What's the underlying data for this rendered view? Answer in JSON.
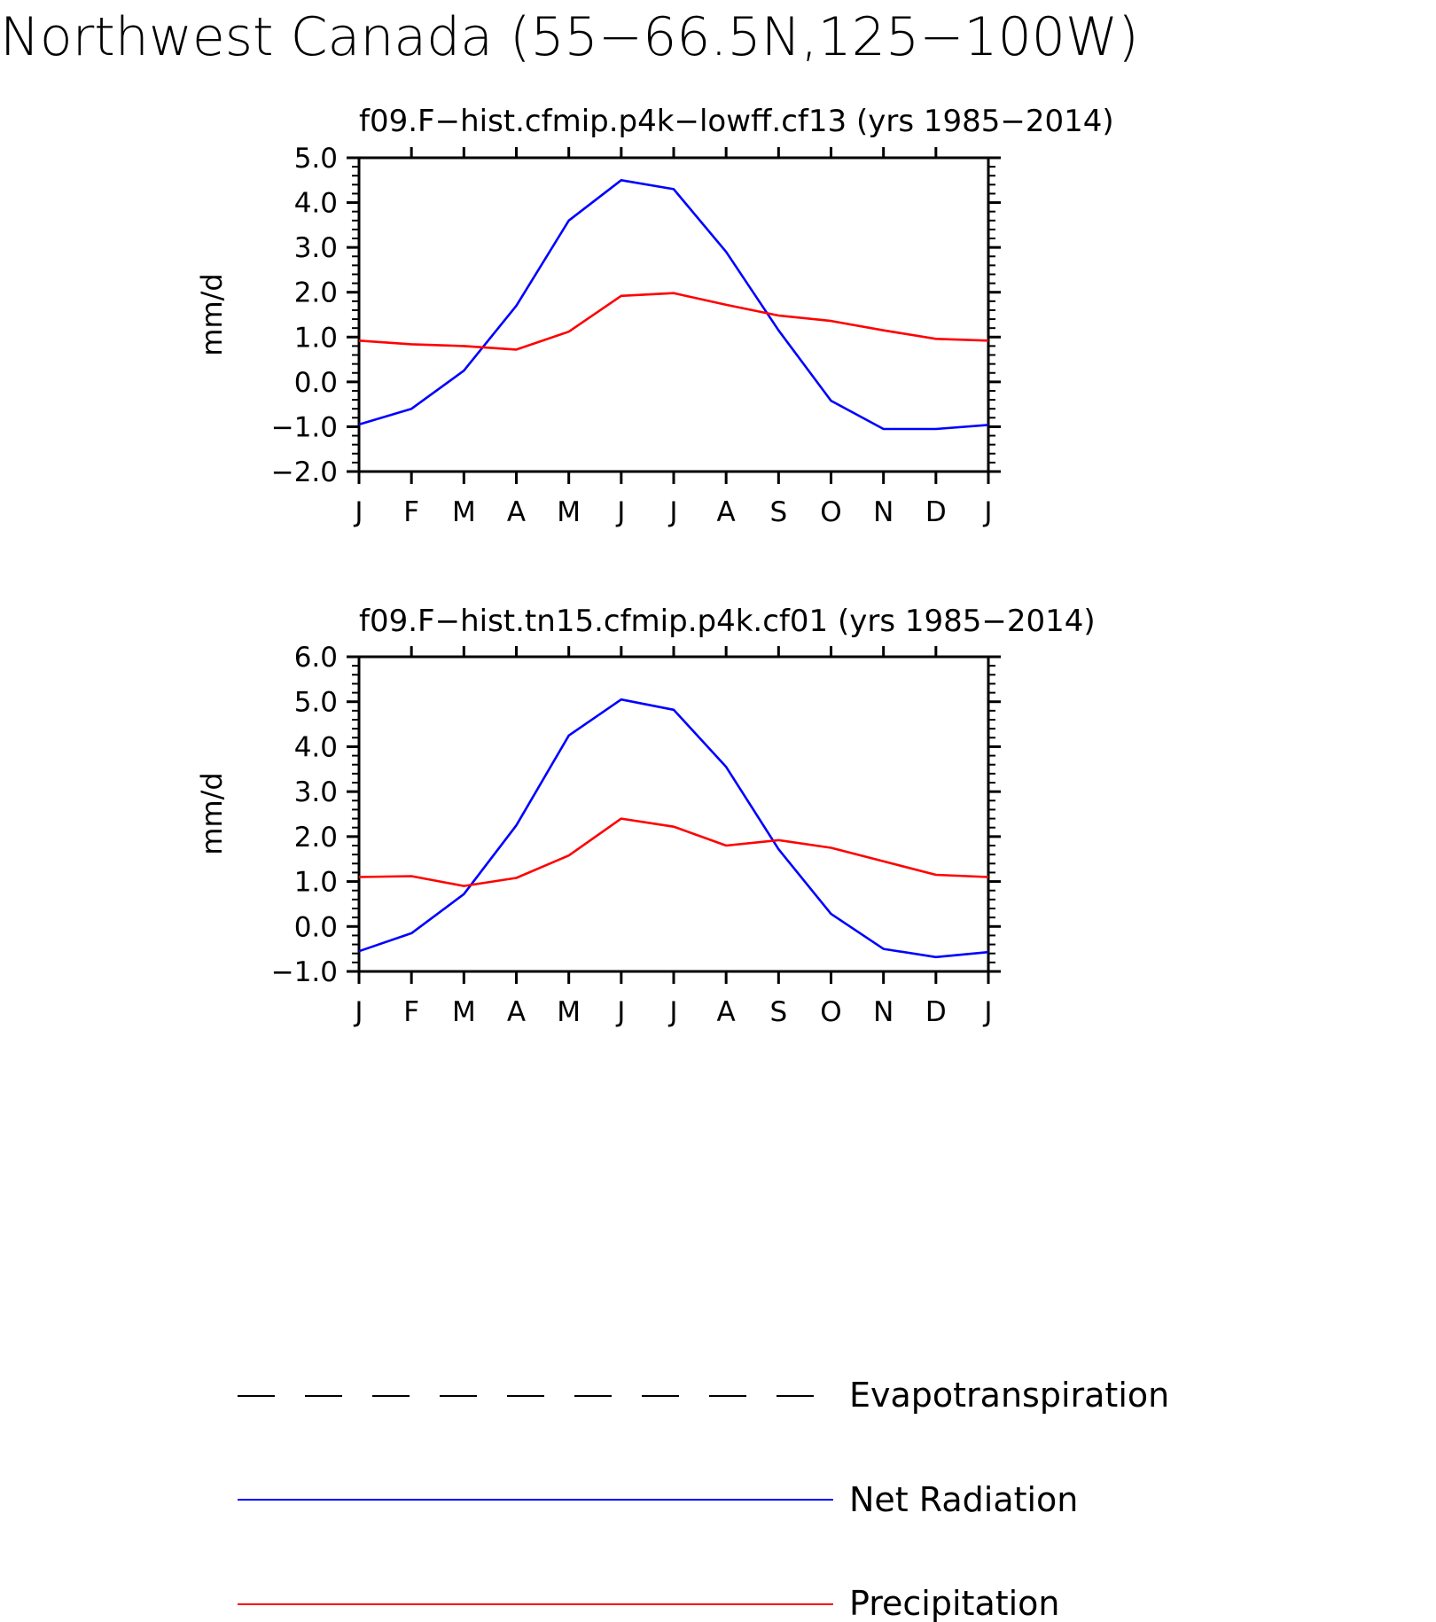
{
  "figure": {
    "title": "Northwest Canada (55−66.5N,125−100W)"
  },
  "chart_data": [
    {
      "type": "line",
      "title": "f09.F−hist.cfmip.p4k−lowff.cf13 (yrs 1985−2014)",
      "xlabel": "",
      "ylabel": "mm/d",
      "categories": [
        "J",
        "F",
        "M",
        "A",
        "M",
        "J",
        "J",
        "A",
        "S",
        "O",
        "N",
        "D",
        "J"
      ],
      "ylim": [
        -2.0,
        5.0
      ],
      "yticks": [
        "−2.0",
        "−1.0",
        "0.0",
        "1.0",
        "2.0",
        "3.0",
        "4.0",
        "5.0"
      ],
      "grid": false,
      "legend": "bottom",
      "series": [
        {
          "name": "Net Radiation",
          "color": "#0000ff",
          "values": [
            -0.95,
            -0.6,
            0.25,
            1.7,
            3.6,
            4.5,
            4.3,
            2.9,
            1.15,
            -0.42,
            -1.05,
            -1.05,
            -0.96
          ]
        },
        {
          "name": "Precipitation",
          "color": "#ff0000",
          "values": [
            0.92,
            0.84,
            0.8,
            0.72,
            1.12,
            1.92,
            1.98,
            1.72,
            1.48,
            1.36,
            1.15,
            0.96,
            0.92
          ]
        }
      ]
    },
    {
      "type": "line",
      "title": "f09.F−hist.tn15.cfmip.p4k.cf01 (yrs 1985−2014)",
      "xlabel": "",
      "ylabel": "mm/d",
      "categories": [
        "J",
        "F",
        "M",
        "A",
        "M",
        "J",
        "J",
        "A",
        "S",
        "O",
        "N",
        "D",
        "J"
      ],
      "ylim": [
        -1.0,
        6.0
      ],
      "yticks": [
        "−1.0",
        "0.0",
        "1.0",
        "2.0",
        "3.0",
        "4.0",
        "5.0",
        "6.0"
      ],
      "grid": false,
      "legend": "bottom",
      "series": [
        {
          "name": "Net Radiation",
          "color": "#0000ff",
          "values": [
            -0.55,
            -0.15,
            0.72,
            2.25,
            4.25,
            5.05,
            4.82,
            3.55,
            1.72,
            0.28,
            -0.5,
            -0.68,
            -0.57
          ]
        },
        {
          "name": "Precipitation",
          "color": "#ff0000",
          "values": [
            1.1,
            1.12,
            0.9,
            1.08,
            1.58,
            2.4,
            2.22,
            1.8,
            1.92,
            1.75,
            1.45,
            1.15,
            1.1
          ]
        }
      ]
    }
  ],
  "legend": [
    {
      "label": "Evapotranspiration",
      "color": "#000000",
      "style": "dashed"
    },
    {
      "label": "Net Radiation",
      "color": "#0000ff",
      "style": "solid"
    },
    {
      "label": "Precipitation",
      "color": "#ff0000",
      "style": "solid"
    }
  ]
}
